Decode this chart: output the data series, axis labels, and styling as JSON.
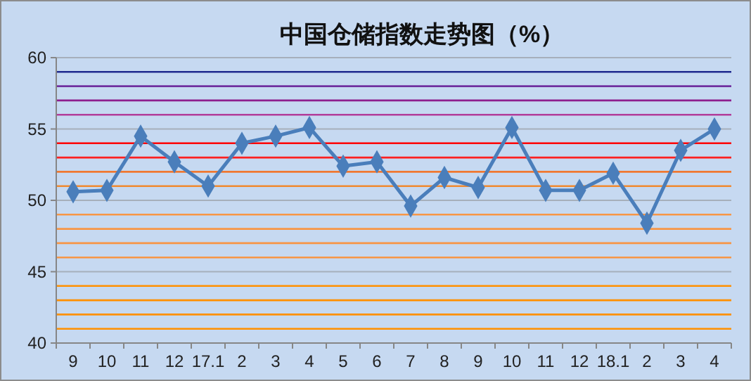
{
  "chart_data": {
    "type": "line",
    "title": "中国仓储指数走势图（%）",
    "categories": [
      "9",
      "10",
      "11",
      "12",
      "17.1",
      "2",
      "3",
      "4",
      "5",
      "6",
      "7",
      "8",
      "9",
      "10",
      "11",
      "12",
      "18.1",
      "2",
      "3",
      "4"
    ],
    "series": [
      {
        "color": "#4a7ebb",
        "values": [
          50.6,
          50.7,
          54.5,
          52.7,
          51.0,
          54.0,
          54.5,
          55.1,
          52.4,
          52.7,
          49.6,
          51.6,
          50.9,
          55.1,
          50.7,
          50.7,
          51.9,
          48.4,
          53.5,
          55.0
        ]
      }
    ],
    "ylim": [
      40,
      60
    ],
    "yticks": [
      40,
      45,
      50,
      55,
      60
    ],
    "grid": "y",
    "marker": "diamond",
    "line_style": "solid",
    "ref_lines": [
      {
        "axis": "y",
        "value": 59,
        "color": "#1f2a8f"
      },
      {
        "axis": "y",
        "value": 58,
        "color": "#7030a0"
      },
      {
        "axis": "y",
        "value": 57,
        "color": "#8e1e8e"
      },
      {
        "axis": "y",
        "value": 56,
        "color": "#b23c9a"
      },
      {
        "axis": "y",
        "value": 54,
        "color": "#ff0000"
      },
      {
        "axis": "y",
        "value": 53,
        "color": "#ff2020"
      },
      {
        "axis": "y",
        "value": 52,
        "color": "#f07830"
      },
      {
        "axis": "y",
        "value": 51,
        "color": "#f08a30"
      },
      {
        "axis": "y",
        "value": 49,
        "color": "#f79646"
      },
      {
        "axis": "y",
        "value": 48,
        "color": "#f79646"
      },
      {
        "axis": "y",
        "value": 47,
        "color": "#f79646"
      },
      {
        "axis": "y",
        "value": 46,
        "color": "#f79646"
      },
      {
        "axis": "y",
        "value": 44,
        "color": "#ff9000"
      },
      {
        "axis": "y",
        "value": 43,
        "color": "#ff9000"
      },
      {
        "axis": "y",
        "value": 42,
        "color": "#ff9000"
      },
      {
        "axis": "y",
        "value": 41,
        "color": "#ff9000"
      }
    ]
  }
}
